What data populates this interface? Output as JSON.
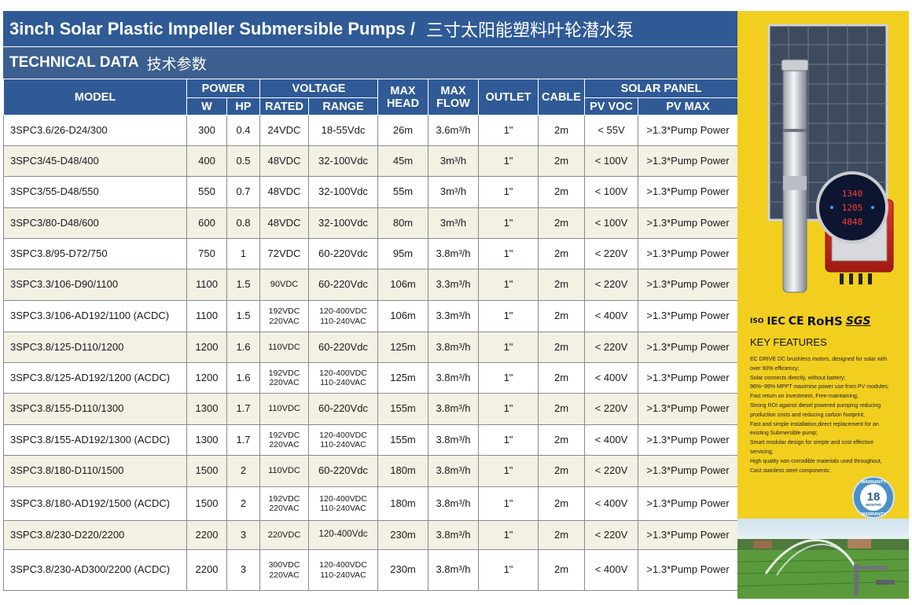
{
  "header": {
    "title_en": "3inch Solar Plastic Impeller Submersible Pumps /",
    "title_cn": "三寸太阳能塑料叶轮潜水泵",
    "subtitle_en": "TECHNICAL DATA",
    "subtitle_cn": "技术参数"
  },
  "table_header": {
    "model": "MODEL",
    "power": "POWER",
    "voltage": "VOLTAGE",
    "max_head": "MAX HEAD",
    "max_flow": "MAX FLOW",
    "outlet": "OUTLET",
    "cable": "CABLE",
    "solar_panel": "SOLAR PANEL",
    "w": "W",
    "hp": "HP",
    "rated": "RATED",
    "range": "RANGE",
    "pv_voc": "PV VOC",
    "pv_max": "PV MAX"
  },
  "rows": [
    {
      "model": "3SPC3.6/26-D24/300",
      "w": "300",
      "hp": "0.4",
      "rated": "24VDC",
      "range": "18-55Vdc",
      "head": "26m",
      "flow": "3.6m³/h",
      "outlet": "1\"",
      "cable": "2m",
      "voc": "< 55V",
      "pvmax": ">1.3*Pump Power"
    },
    {
      "model": "3SPC3/45-D48/400",
      "w": "400",
      "hp": "0.5",
      "rated": "48VDC",
      "range": "32-100Vdc",
      "head": "45m",
      "flow": "3m³/h",
      "outlet": "1\"",
      "cable": "2m",
      "voc": "< 100V",
      "pvmax": ">1.3*Pump Power"
    },
    {
      "model": "3SPC3/55-D48/550",
      "w": "550",
      "hp": "0.7",
      "rated": "48VDC",
      "range": "32-100Vdc",
      "head": "55m",
      "flow": "3m³/h",
      "outlet": "1\"",
      "cable": "2m",
      "voc": "< 100V",
      "pvmax": ">1.3*Pump Power"
    },
    {
      "model": "3SPC3/80-D48/600",
      "w": "600",
      "hp": "0.8",
      "rated": "48VDC",
      "range": "32-100Vdc",
      "head": "80m",
      "flow": "3m³/h",
      "outlet": "1\"",
      "cable": "2m",
      "voc": "< 100V",
      "pvmax": ">1.3*Pump Power"
    },
    {
      "model": "3SPC3.8/95-D72/750",
      "w": "750",
      "hp": "1",
      "rated": "72VDC",
      "range": "60-220Vdc",
      "head": "95m",
      "flow": "3.8m³/h",
      "outlet": "1\"",
      "cable": "2m",
      "voc": "< 220V",
      "pvmax": ">1.3*Pump Power"
    },
    {
      "model": "3SPC3.3/106-D90/1100",
      "w": "1100",
      "hp": "1.5",
      "rated": "90VDC",
      "range": "60-220Vdc",
      "head": "106m",
      "flow": "3.3m³/h",
      "outlet": "1\"",
      "cable": "2m",
      "voc": "< 220V",
      "pvmax": ">1.3*Pump Power"
    },
    {
      "model": "3SPC3.3/106-AD192/1100 (ACDC)",
      "w": "1100",
      "hp": "1.5",
      "rated": "192VDC",
      "rated2": "220VAC",
      "range": "120-400VDC",
      "range2": "110-240VAC",
      "head": "106m",
      "flow": "3.3m³/h",
      "outlet": "1\"",
      "cable": "2m",
      "voc": "< 400V",
      "pvmax": ">1.3*Pump Power"
    },
    {
      "model": "3SPC3.8/125-D110/1200",
      "w": "1200",
      "hp": "1.6",
      "rated": "110VDC",
      "range": "60-220Vdc",
      "head": "125m",
      "flow": "3.8m³/h",
      "outlet": "1\"",
      "cable": "2m",
      "voc": "< 220V",
      "pvmax": ">1.3*Pump Power"
    },
    {
      "model": "3SPC3.8/125-AD192/1200 (ACDC)",
      "w": "1200",
      "hp": "1.6",
      "rated": "192VDC",
      "rated2": "220VAC",
      "range": "120-400VDC",
      "range2": "110-240VAC",
      "head": "125m",
      "flow": "3.8m³/h",
      "outlet": "1\"",
      "cable": "2m",
      "voc": "< 400V",
      "pvmax": ">1.3*Pump Power"
    },
    {
      "model": "3SPC3.8/155-D110/1300",
      "w": "1300",
      "hp": "1.7",
      "rated": "110VDC",
      "range": "60-220Vdc",
      "head": "155m",
      "flow": "3.8m³/h",
      "outlet": "1\"",
      "cable": "2m",
      "voc": "< 220V",
      "pvmax": ">1.3*Pump Power"
    },
    {
      "model": "3SPC3.8/155-AD192/1300 (ACDC)",
      "w": "1300",
      "hp": "1.7",
      "rated": "192VDC",
      "rated2": "220VAC",
      "range": "120-400VDC",
      "range2": "110-240VAC",
      "head": "155m",
      "flow": "3.8m³/h",
      "outlet": "1\"",
      "cable": "2m",
      "voc": "< 400V",
      "pvmax": ">1.3*Pump Power"
    },
    {
      "model": "3SPC3.8/180-D110/1500",
      "w": "1500",
      "hp": "2",
      "rated": "110VDC",
      "range": "60-220Vdc",
      "head": "180m",
      "flow": "3.8m³/h",
      "outlet": "1\"",
      "cable": "2m",
      "voc": "< 220V",
      "pvmax": ">1.3*Pump Power"
    },
    {
      "model": "3SPC3.8/180-AD192/1500 (ACDC)",
      "w": "1500",
      "hp": "2",
      "rated": "192VDC",
      "rated2": "220VAC",
      "range": "120-400VDC",
      "range2": "110-240VAC",
      "head": "180m",
      "flow": "3.8m³/h",
      "outlet": "1\"",
      "cable": "2m",
      "voc": "< 400V",
      "pvmax": ">1.3*Pump Power"
    },
    {
      "model": "3SPC3.8/230-D220/2200",
      "w": "2200",
      "hp": "3",
      "rated": "220VDC",
      "range": "120-400Vdc",
      "head": "230m",
      "flow": "3.8m³/h",
      "outlet": "1\"",
      "cable": "2m",
      "voc": "< 220V",
      "pvmax": ">1.3*Pump Power"
    },
    {
      "model": "3SPC3.8/230-AD300/2200 (ACDC)",
      "w": "2200",
      "hp": "3",
      "rated": "300VDC",
      "rated2": "220VAC",
      "range": "120-400VDC",
      "range2": "110-240VAC",
      "head": "230m",
      "flow": "3.8m³/h",
      "outlet": "1\"",
      "cable": "2m",
      "voc": "< 400V",
      "pvmax": ">1.3*Pump Power"
    }
  ],
  "side_panel": {
    "certs": [
      "ISO",
      "IEC",
      "CE",
      "RoHS",
      "SGS"
    ],
    "key_features_title": "KEY FEATURES",
    "features": [
      "EC DRIVE DC brushless motors, designed for solar with",
      "over 90% efficiency;",
      "Solar connects directly, without battery;",
      "96%~99% MPPT maximise power use from PV modules;",
      "Fast return on investment, Free-maintaining;",
      "Strong ROI against diesel powered pumping reducing",
      "production costs and reducing carbon footprint;",
      "Fast and simple installation,direct replacement for an",
      "existing Submersible pump;",
      "Smart modular design for simple and cost effective",
      "servicing;",
      "High quality non corrodible materials used throughout,",
      "Cast stainless steel components;"
    ],
    "controller_display": [
      "1340",
      "1205",
      "4848"
    ],
    "warranty": {
      "top": "WARRANTY",
      "number": "18",
      "unit": "MONTHS",
      "bottom": "WARRANTY"
    },
    "colors": {
      "panel_bg": "#f2cf1f",
      "header_blue": "#2f5a96"
    }
  }
}
